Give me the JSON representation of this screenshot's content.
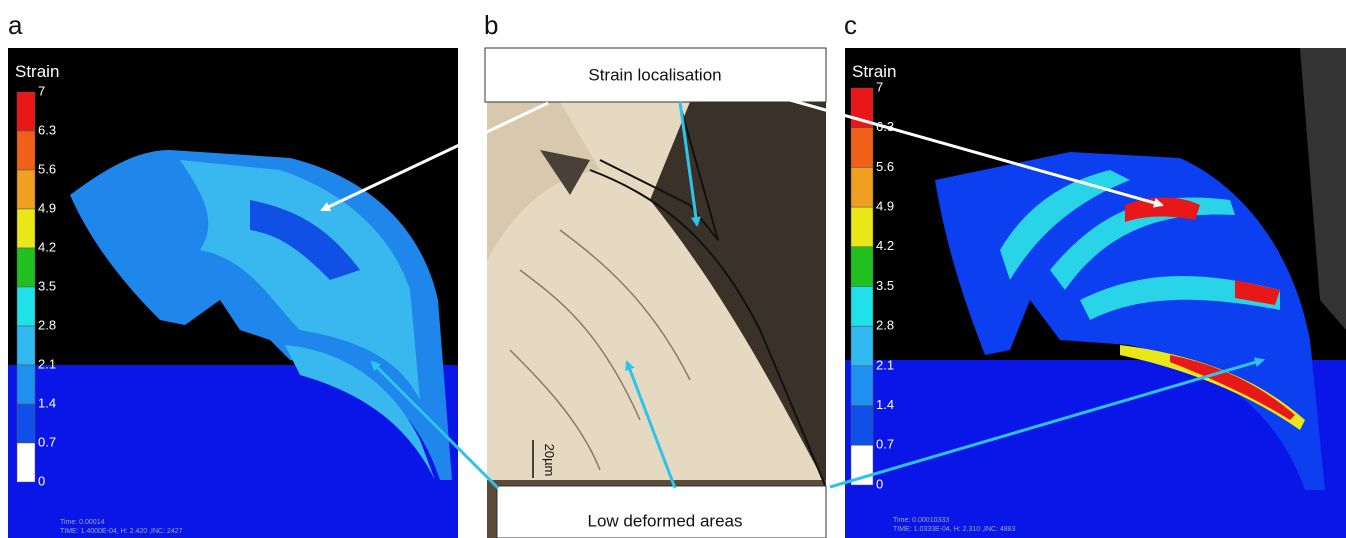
{
  "panels": [
    {
      "label": "a",
      "legend_title": "Strain",
      "legend_ticks": [
        7,
        6.3,
        5.6,
        4.9,
        4.2,
        3.5,
        2.8,
        2.1,
        1.4,
        0.7,
        0
      ],
      "footer": [
        "Time: 0.00014",
        "TIME: 1.4000E-04, H: 2.420   ,INC: 2427"
      ]
    },
    {
      "label": "b",
      "top_box": "Strain localisation",
      "bottom_box": "Low deformed areas",
      "scale_bar": "20µm"
    },
    {
      "label": "c",
      "legend_title": "Strain",
      "legend_ticks": [
        7,
        6.3,
        5.6,
        4.9,
        4.2,
        3.5,
        2.8,
        2.1,
        1.4,
        0.7,
        0
      ],
      "footer": [
        "Time: 0.00010333",
        "TIME: 1.0333E-04, H: 2.310   ,INC: 4883"
      ]
    }
  ]
}
